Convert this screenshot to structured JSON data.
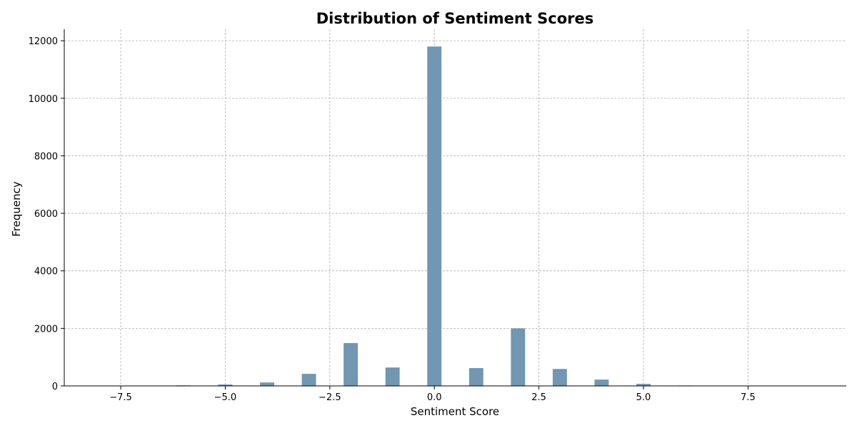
{
  "chart_data": {
    "type": "bar",
    "title": "Distribution of Sentiment Scores",
    "xlabel": "Sentiment Score",
    "ylabel": "Frequency",
    "xlim": [
      -8.85,
      9.85
    ],
    "ylim": [
      0,
      12400
    ],
    "xticks": [
      -7.5,
      -5.0,
      -2.5,
      0.0,
      2.5,
      5.0,
      7.5
    ],
    "xtick_labels": [
      "−7.5",
      "−5.0",
      "−2.5",
      "0.0",
      "2.5",
      "5.0",
      "7.5"
    ],
    "yticks": [
      0,
      2000,
      4000,
      6000,
      8000,
      10000,
      12000
    ],
    "ytick_labels": [
      "0",
      "2000",
      "4000",
      "6000",
      "8000",
      "10000",
      "12000"
    ],
    "grid": true,
    "bar_color": "#7197b2",
    "bins": [
      {
        "x": -6.0,
        "value": 20
      },
      {
        "x": -5.0,
        "value": 50
      },
      {
        "x": -4.0,
        "value": 120
      },
      {
        "x": -3.0,
        "value": 420
      },
      {
        "x": -2.0,
        "value": 1490
      },
      {
        "x": -1.0,
        "value": 640
      },
      {
        "x": 0.0,
        "value": 11800
      },
      {
        "x": 1.0,
        "value": 620
      },
      {
        "x": 2.0,
        "value": 2000
      },
      {
        "x": 3.0,
        "value": 590
      },
      {
        "x": 4.0,
        "value": 220
      },
      {
        "x": 5.0,
        "value": 70
      },
      {
        "x": 6.0,
        "value": 15
      }
    ]
  }
}
